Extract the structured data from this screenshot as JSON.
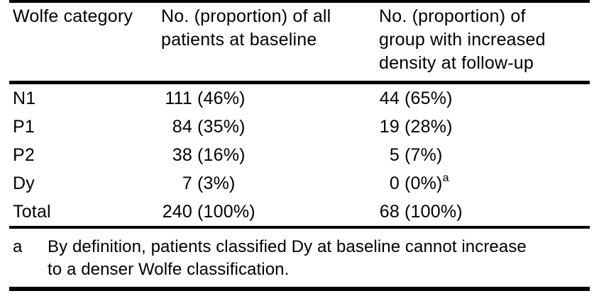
{
  "table": {
    "columns": [
      {
        "label_lines": [
          "Wolfe category"
        ]
      },
      {
        "label_lines": [
          "No. (proportion) of all",
          "patients at baseline"
        ]
      },
      {
        "label_lines": [
          "No. (proportion) of",
          "group with increased",
          "density at follow-up"
        ]
      }
    ],
    "rows": [
      {
        "category": "N1",
        "baseline_n": "111",
        "baseline_pct": "(46%)",
        "followup_n": "44",
        "followup_pct": "(65%)",
        "followup_sup": ""
      },
      {
        "category": "P1",
        "baseline_n": "84",
        "baseline_pct": "(35%)",
        "followup_n": "19",
        "followup_pct": "(28%)",
        "followup_sup": ""
      },
      {
        "category": "P2",
        "baseline_n": "38",
        "baseline_pct": "(16%)",
        "followup_n": "5",
        "followup_pct": "(7%)",
        "followup_sup": ""
      },
      {
        "category": "Dy",
        "baseline_n": "7",
        "baseline_pct": "(3%)",
        "followup_n": "0",
        "followup_pct": "(0%)",
        "followup_sup": "a"
      },
      {
        "category": "Total",
        "baseline_n": "240",
        "baseline_pct": "(100%)",
        "followup_n": "68",
        "followup_pct": "(100%)",
        "followup_sup": ""
      }
    ],
    "footnote": {
      "marker": "a",
      "lines": [
        "By definition, patients classified Dy at baseline cannot increase",
        "to a denser Wolfe classification."
      ]
    }
  },
  "colors": {
    "text": "#000000",
    "rule": "#000000",
    "background": "#ffffff"
  }
}
